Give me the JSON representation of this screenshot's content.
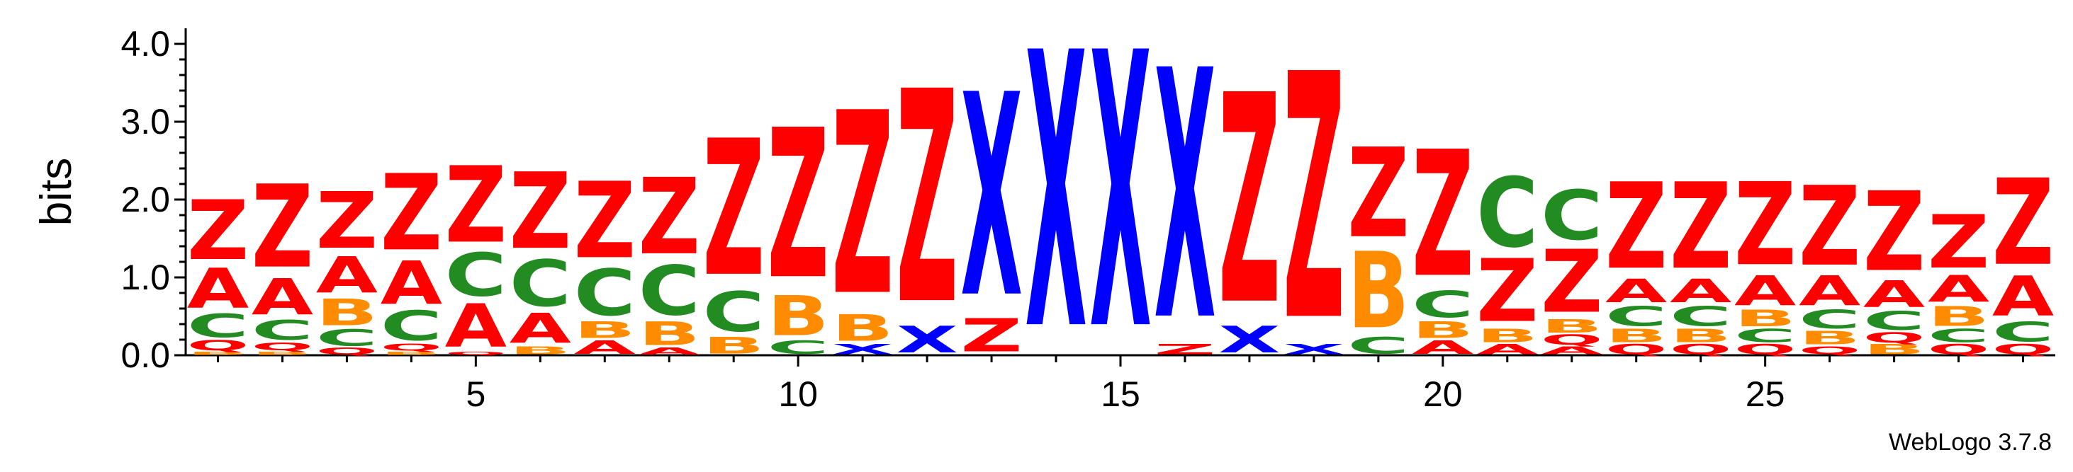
{
  "chart_data": {
    "type": "sequence-logo",
    "ylabel": "bits",
    "ylim": [
      0,
      4.2
    ],
    "y_ticks": [
      "0.0",
      "1.0",
      "2.0",
      "3.0",
      "4.0"
    ],
    "x_ticks": [
      5,
      10,
      15,
      20,
      25
    ],
    "x_range": [
      1,
      29
    ],
    "colors": {
      "A": "#ff0000",
      "B": "#ff8c00",
      "C": "#228b22",
      "Q": "#ff0000",
      "X": "#0000ff",
      "Z": "#ff0000"
    },
    "positions": [
      {
        "pos": 1,
        "stack": [
          [
            "B",
            0.05
          ],
          [
            "Q",
            0.15
          ],
          [
            "C",
            0.35
          ],
          [
            "A",
            0.6
          ],
          [
            "Z",
            0.9
          ]
        ]
      },
      {
        "pos": 2,
        "stack": [
          [
            "B",
            0.05
          ],
          [
            "Q",
            0.12
          ],
          [
            "C",
            0.3
          ],
          [
            "A",
            0.55
          ],
          [
            "Z",
            1.25
          ]
        ]
      },
      {
        "pos": 3,
        "stack": [
          [
            "Q",
            0.1
          ],
          [
            "C",
            0.25
          ],
          [
            "B",
            0.4
          ],
          [
            "A",
            0.55
          ],
          [
            "Z",
            0.85
          ]
        ]
      },
      {
        "pos": 4,
        "stack": [
          [
            "B",
            0.05
          ],
          [
            "Q",
            0.1
          ],
          [
            "C",
            0.45
          ],
          [
            "A",
            0.65
          ],
          [
            "Z",
            1.15
          ]
        ]
      },
      {
        "pos": 5,
        "stack": [
          [
            "Q",
            0.05
          ],
          [
            "A",
            0.65
          ],
          [
            "C",
            0.65
          ],
          [
            "Z",
            1.15
          ]
        ]
      },
      {
        "pos": 6,
        "stack": [
          [
            "B",
            0.12
          ],
          [
            "A",
            0.45
          ],
          [
            "C",
            0.7
          ],
          [
            "Z",
            1.15
          ]
        ]
      },
      {
        "pos": 7,
        "stack": [
          [
            "A",
            0.2
          ],
          [
            "B",
            0.25
          ],
          [
            "C",
            0.7
          ],
          [
            "Z",
            1.15
          ]
        ]
      },
      {
        "pos": 8,
        "stack": [
          [
            "A",
            0.1
          ],
          [
            "B",
            0.35
          ],
          [
            "C",
            0.75
          ],
          [
            "Z",
            1.15
          ]
        ]
      },
      {
        "pos": 9,
        "stack": [
          [
            "B",
            0.25
          ],
          [
            "C",
            0.6
          ],
          [
            "Z",
            2.05
          ]
        ]
      },
      {
        "pos": 10,
        "stack": [
          [
            "C",
            0.2
          ],
          [
            "B",
            0.6
          ],
          [
            "Z",
            2.25
          ]
        ]
      },
      {
        "pos": 11,
        "stack": [
          [
            "X",
            0.15
          ],
          [
            "B",
            0.4
          ],
          [
            "Z",
            2.75
          ]
        ]
      },
      {
        "pos": 12,
        "stack": [
          [
            "X",
            0.4
          ],
          [
            "Z",
            3.2
          ]
        ]
      },
      {
        "pos": 13,
        "stack": [
          [
            "Z",
            0.5
          ],
          [
            "X",
            3.05
          ]
        ]
      },
      {
        "pos": 14,
        "stack": [
          [
            "X",
            4.15
          ]
        ]
      },
      {
        "pos": 15,
        "stack": [
          [
            "X",
            4.15
          ]
        ]
      },
      {
        "pos": 16,
        "stack": [
          [
            "Z",
            0.15
          ],
          [
            "X",
            3.75
          ]
        ]
      },
      {
        "pos": 17,
        "stack": [
          [
            "X",
            0.4
          ],
          [
            "Z",
            3.15
          ]
        ]
      },
      {
        "pos": 18,
        "stack": [
          [
            "X",
            0.15
          ],
          [
            "Z",
            3.7
          ]
        ]
      },
      {
        "pos": 19,
        "stack": [
          [
            "C",
            0.25
          ],
          [
            "B",
            1.15
          ],
          [
            "Z",
            1.35
          ]
        ]
      },
      {
        "pos": 20,
        "stack": [
          [
            "A",
            0.2
          ],
          [
            "B",
            0.25
          ],
          [
            "C",
            0.4
          ],
          [
            "Z",
            1.9
          ]
        ]
      },
      {
        "pos": 21,
        "stack": [
          [
            "A",
            0.15
          ],
          [
            "B",
            0.2
          ],
          [
            "Z",
            0.95
          ],
          [
            "C",
            1.05
          ]
        ]
      },
      {
        "pos": 22,
        "stack": [
          [
            "A",
            0.12
          ],
          [
            "Q",
            0.15
          ],
          [
            "B",
            0.2
          ],
          [
            "Z",
            0.95
          ],
          [
            "C",
            0.75
          ]
        ]
      },
      {
        "pos": 23,
        "stack": [
          [
            "Q",
            0.15
          ],
          [
            "B",
            0.2
          ],
          [
            "C",
            0.3
          ],
          [
            "A",
            0.35
          ],
          [
            "Z",
            1.3
          ]
        ]
      },
      {
        "pos": 24,
        "stack": [
          [
            "Q",
            0.15
          ],
          [
            "B",
            0.2
          ],
          [
            "C",
            0.3
          ],
          [
            "A",
            0.35
          ],
          [
            "Z",
            1.3
          ]
        ]
      },
      {
        "pos": 25,
        "stack": [
          [
            "Q",
            0.15
          ],
          [
            "C",
            0.2
          ],
          [
            "B",
            0.25
          ],
          [
            "A",
            0.45
          ],
          [
            "Z",
            1.25
          ]
        ]
      },
      {
        "pos": 26,
        "stack": [
          [
            "Q",
            0.12
          ],
          [
            "B",
            0.2
          ],
          [
            "C",
            0.28
          ],
          [
            "A",
            0.45
          ],
          [
            "Z",
            1.2
          ]
        ]
      },
      {
        "pos": 27,
        "stack": [
          [
            "B",
            0.15
          ],
          [
            "Q",
            0.15
          ],
          [
            "C",
            0.28
          ],
          [
            "A",
            0.4
          ],
          [
            "Z",
            1.2
          ]
        ]
      },
      {
        "pos": 28,
        "stack": [
          [
            "Q",
            0.15
          ],
          [
            "C",
            0.2
          ],
          [
            "B",
            0.3
          ],
          [
            "A",
            0.4
          ],
          [
            "Z",
            0.8
          ]
        ]
      },
      {
        "pos": 29,
        "stack": [
          [
            "Q",
            0.15
          ],
          [
            "C",
            0.3
          ],
          [
            "A",
            0.6
          ],
          [
            "Z",
            1.3
          ]
        ]
      }
    ]
  },
  "credit": "WebLogo 3.7.8"
}
